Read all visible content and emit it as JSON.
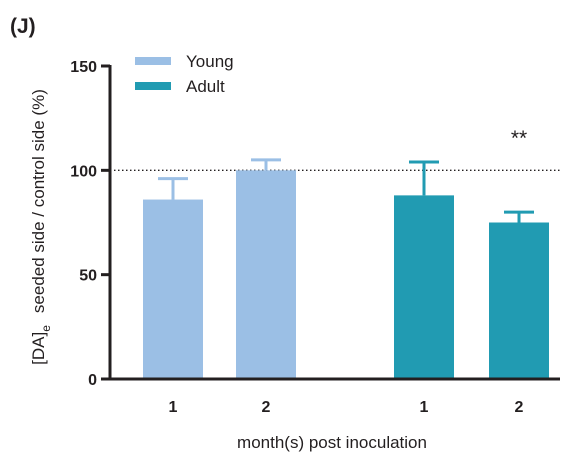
{
  "panel_label": "(J)",
  "chart_data": {
    "type": "bar",
    "title": "",
    "xlabel": "month(s) post inoculation",
    "ylabel": {
      "main": "[DA]",
      "subscript": "e",
      "rest": "seeded side / control side (%)"
    },
    "ylim": [
      0,
      150
    ],
    "yticks": [
      0,
      50,
      100,
      150
    ],
    "reference_line": {
      "y": 100,
      "style": "dotted"
    },
    "grid": false,
    "legend_position": "top-left",
    "series": [
      {
        "name": "Young",
        "color": "#9bbfe5",
        "categories": [
          "1",
          "2"
        ],
        "values": [
          86,
          100
        ],
        "error_upper": [
          96,
          105
        ]
      },
      {
        "name": "Adult",
        "color": "#219bb2",
        "categories": [
          "1",
          "2"
        ],
        "values": [
          88,
          75
        ],
        "error_upper": [
          104,
          80
        ]
      }
    ],
    "annotations": [
      {
        "text": "**",
        "series": "Adult",
        "category": "2"
      }
    ]
  }
}
